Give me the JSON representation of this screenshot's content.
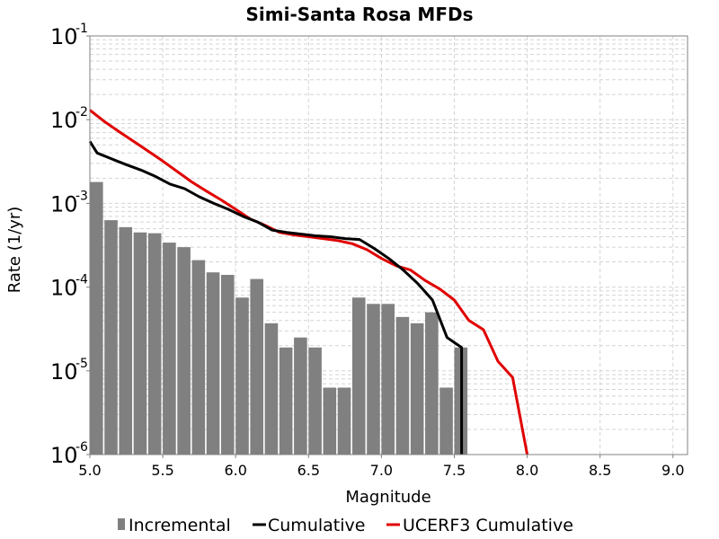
{
  "chart_data": {
    "type": "bar",
    "title": "Simi-Santa Rosa MFDs",
    "xlabel": "Magnitude",
    "ylabel": "Rate (1/yr)",
    "xlim": [
      5.0,
      9.1
    ],
    "ylim": [
      1e-06,
      0.1
    ],
    "yscale": "log",
    "grid": true,
    "legend_position": "bottom",
    "xticks": [
      "5.0",
      "5.5",
      "6.0",
      "6.5",
      "7.0",
      "7.5",
      "8.0",
      "8.5",
      "9.0"
    ],
    "yticks": [
      {
        "base": "10",
        "exp": "-1"
      },
      {
        "base": "10",
        "exp": "-2"
      },
      {
        "base": "10",
        "exp": "-3"
      },
      {
        "base": "10",
        "exp": "-4"
      },
      {
        "base": "10",
        "exp": "-5"
      },
      {
        "base": "10",
        "exp": "-6"
      }
    ],
    "series": [
      {
        "name": "Incremental",
        "kind": "bar",
        "color": "#808080",
        "bar_width": 0.09,
        "x": [
          5.0,
          5.1,
          5.2,
          5.3,
          5.4,
          5.5,
          5.6,
          5.7,
          5.8,
          5.9,
          6.0,
          6.1,
          6.2,
          6.3,
          6.4,
          6.5,
          6.6,
          6.7,
          6.8,
          6.9,
          7.0,
          7.1,
          7.2,
          7.3,
          7.4,
          7.5
        ],
        "values": [
          0.0018,
          0.00063,
          0.00052,
          0.00045,
          0.00044,
          0.00034,
          0.0003,
          0.00021,
          0.00015,
          0.00014,
          7.5e-05,
          0.000125,
          3.7e-05,
          1.9e-05,
          2.5e-05,
          1.9e-05,
          6.3e-06,
          6.3e-06,
          7.5e-05,
          6.3e-05,
          6.3e-05,
          4.4e-05,
          3.7e-05,
          5e-05,
          6.3e-06,
          1.9e-05
        ]
      },
      {
        "name": "Cumulative",
        "kind": "line",
        "color": "#000000",
        "x": [
          5.0,
          5.05,
          5.15,
          5.25,
          5.35,
          5.45,
          5.55,
          5.65,
          5.75,
          5.85,
          5.95,
          6.05,
          6.15,
          6.25,
          6.35,
          6.45,
          6.55,
          6.65,
          6.75,
          6.85,
          6.95,
          7.05,
          7.15,
          7.25,
          7.35,
          7.45,
          7.55,
          7.55
        ],
        "values": [
          0.0055,
          0.004,
          0.0034,
          0.0029,
          0.0025,
          0.0021,
          0.0017,
          0.0015,
          0.0012,
          0.001,
          0.00085,
          0.0007,
          0.0006,
          0.00048,
          0.00045,
          0.00043,
          0.00041,
          0.0004,
          0.00038,
          0.00037,
          0.00029,
          0.00022,
          0.00016,
          0.00011,
          7e-05,
          2.5e-05,
          1.9e-05,
          1e-06
        ]
      },
      {
        "name": "UCERF3 Cumulative",
        "kind": "line",
        "color": "#e00000",
        "x": [
          5.0,
          5.1,
          5.2,
          5.3,
          5.4,
          5.5,
          5.6,
          5.7,
          5.8,
          5.9,
          6.0,
          6.1,
          6.2,
          6.3,
          6.4,
          6.5,
          6.6,
          6.7,
          6.8,
          6.9,
          7.0,
          7.1,
          7.2,
          7.3,
          7.4,
          7.5,
          7.6,
          7.7,
          7.8,
          7.9,
          8.0
        ],
        "values": [
          0.013,
          0.0095,
          0.0072,
          0.0055,
          0.0042,
          0.0032,
          0.0024,
          0.0018,
          0.0014,
          0.0011,
          0.00085,
          0.00065,
          0.00055,
          0.00045,
          0.00042,
          0.0004,
          0.00038,
          0.00036,
          0.00033,
          0.00028,
          0.00022,
          0.00018,
          0.00016,
          0.00012,
          9.5e-05,
          7e-05,
          4e-05,
          3.1e-05,
          1.3e-05,
          8.3e-06,
          1e-06
        ]
      }
    ]
  }
}
